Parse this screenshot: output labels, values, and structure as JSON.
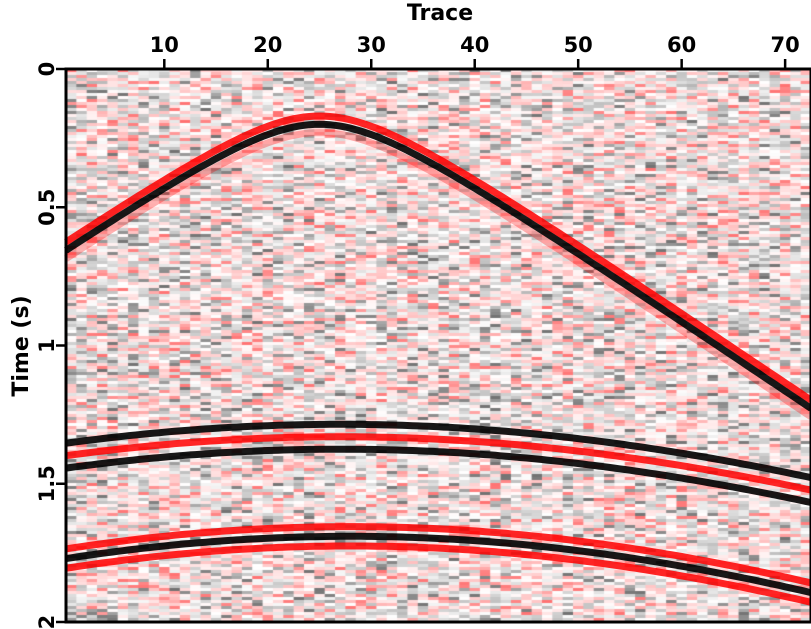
{
  "chart_data": {
    "type": "heatmap",
    "subtype": "seismic-gather",
    "xlabel": "Trace",
    "ylabel": "Time (s)",
    "xlim": [
      0.5,
      72.5
    ],
    "ylim": [
      0,
      2
    ],
    "x_axis_position": "top",
    "y_inverted": true,
    "xticks": [
      10,
      20,
      30,
      40,
      50,
      60,
      70
    ],
    "xtick_labels": [
      "10",
      "20",
      "30",
      "40",
      "50",
      "60",
      "70"
    ],
    "yticks": [
      0,
      0.5,
      1,
      1.5,
      2
    ],
    "ytick_labels": [
      "0",
      "0.5",
      "1",
      "1.5",
      "2"
    ],
    "colors": {
      "positive": "#000000",
      "negative": "#ff0000",
      "background": "#ffffff"
    },
    "noise_level": 0.25,
    "events": [
      {
        "name": "event-1",
        "apex_trace": 25,
        "apex_time": 0.2,
        "slowness": 0.0255,
        "center_polarity": "black",
        "lobes": [
          {
            "offset": -0.03,
            "color": "red"
          },
          {
            "offset": 0,
            "color": "black"
          },
          {
            "offset": 0.03,
            "color": "red",
            "faint": true
          }
        ]
      },
      {
        "name": "event-2",
        "apex_trace": 27,
        "apex_time": 1.33,
        "slowness": 0.0163,
        "center_polarity": "red",
        "lobes": [
          {
            "offset": -0.045,
            "color": "black"
          },
          {
            "offset": 0,
            "color": "red"
          },
          {
            "offset": 0.045,
            "color": "black"
          }
        ]
      },
      {
        "name": "event-3",
        "apex_trace": 28,
        "apex_time": 1.69,
        "slowness": 0.0192,
        "center_polarity": "black",
        "lobes": [
          {
            "offset": -0.035,
            "color": "red"
          },
          {
            "offset": 0,
            "color": "black"
          },
          {
            "offset": 0.035,
            "color": "red"
          }
        ]
      }
    ]
  }
}
